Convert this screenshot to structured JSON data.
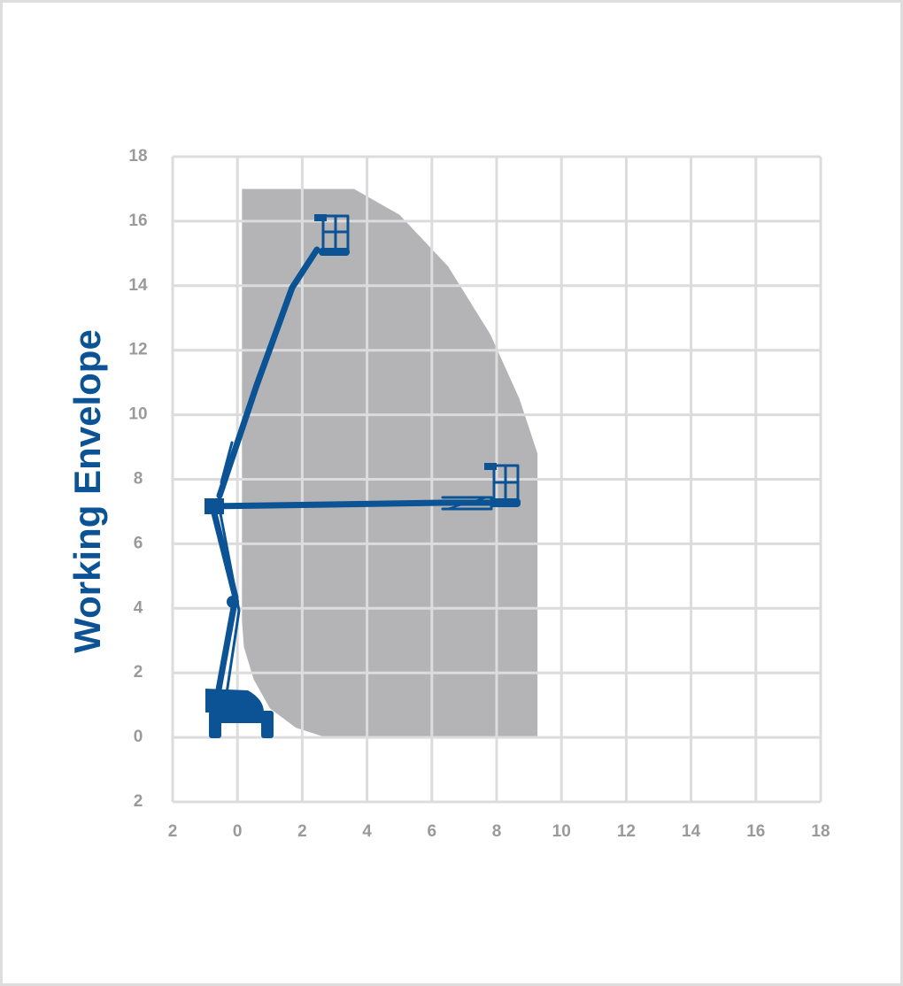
{
  "chart_data": {
    "type": "area",
    "ylabel": "Working Envelope",
    "xlim": [
      -2,
      18
    ],
    "ylim": [
      -2,
      18
    ],
    "xticks": [
      {
        "value": -2,
        "label": "2"
      },
      0,
      2,
      4,
      6,
      8,
      10,
      12,
      14,
      16,
      18
    ],
    "yticks": [
      {
        "value": -2,
        "label": "2"
      },
      0,
      2,
      4,
      6,
      8,
      10,
      12,
      14,
      16,
      18
    ],
    "grid": true,
    "series": [
      {
        "color": "#b4b4b6",
        "x": [
          0.14,
          3.6,
          5.0,
          6.5,
          7.8,
          8.7,
          9.26,
          9.26,
          2.73,
          1.8,
          1.0,
          0.5,
          0.2,
          0.14
        ],
        "values": [
          17,
          17,
          16.2,
          14.6,
          12.5,
          10.5,
          8.8,
          0,
          0,
          0.3,
          0.9,
          1.8,
          2.8,
          3.6
        ]
      }
    ]
  }
}
